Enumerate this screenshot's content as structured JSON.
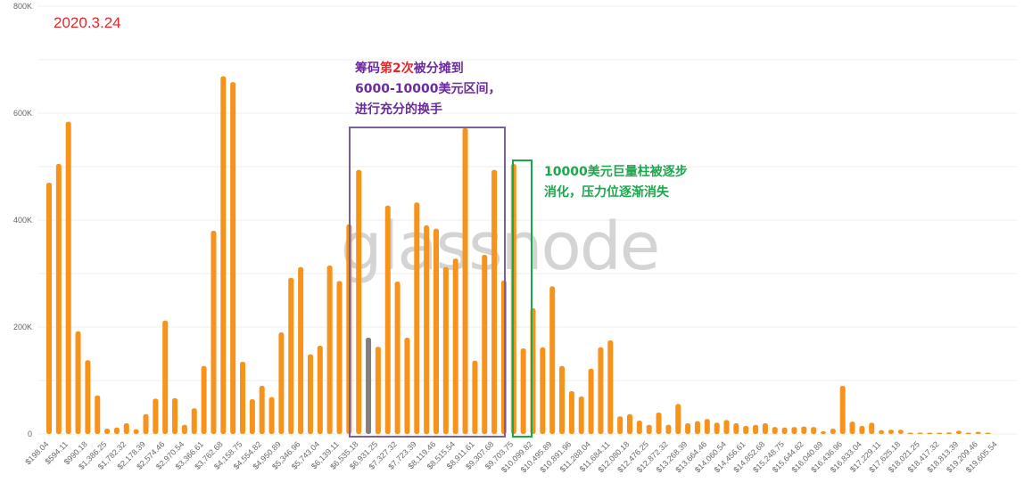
{
  "chart_data": {
    "type": "bar",
    "watermark": "glassnode",
    "y_tick_labels": [
      "0",
      "200K",
      "400K",
      "600K",
      "800K"
    ],
    "ylim": [
      0,
      800000
    ],
    "grid": true,
    "x_tick_labels": [
      "$198.04",
      "$594.11",
      "$990.18",
      "$1,386.25",
      "$1,782.32",
      "$2,178.39",
      "$2,574.46",
      "$2,970.54",
      "$3,366.61",
      "$3,762.68",
      "$4,158.75",
      "$4,554.82",
      "$4,950.89",
      "$5,346.96",
      "$5,743.04",
      "$6,139.11",
      "$6,535.18",
      "$6,931.25",
      "$7,327.32",
      "$7,723.39",
      "$8,119.46",
      "$8,515.54",
      "$8,911.61",
      "$9,307.68",
      "$9,703.75",
      "$10,099.82",
      "$10,495.89",
      "$10,891.96",
      "$11,288.04",
      "$11,684.11",
      "$12,080.18",
      "$12,476.25",
      "$12,872.32",
      "$13,268.39",
      "$13,664.46",
      "$14,060.54",
      "$14,456.61",
      "$14,852.68",
      "$15,248.75",
      "$15,644.82",
      "$16,040.89",
      "$16,436.96",
      "$16,833.04",
      "$17,229.11",
      "$17,625.18",
      "$18,021.25",
      "$18,417.32",
      "$18,813.39",
      "$19,209.46",
      "$19,605.54"
    ],
    "values": [
      470000,
      505000,
      584000,
      192000,
      138000,
      72000,
      10000,
      12000,
      20000,
      9000,
      37000,
      66000,
      212000,
      67000,
      17000,
      48000,
      127000,
      380000,
      669000,
      658000,
      135000,
      65000,
      90000,
      69000,
      190000,
      292000,
      312000,
      149000,
      165000,
      315000,
      286000,
      392000,
      494000,
      180000,
      163000,
      427000,
      285000,
      180000,
      433000,
      390000,
      384000,
      312000,
      328000,
      572000,
      137000,
      335000,
      494000,
      287000,
      505000,
      160000,
      235000,
      162000,
      276000,
      127000,
      80000,
      70000,
      122000,
      162000,
      175000,
      33000,
      37000,
      25000,
      17000,
      40000,
      17000,
      56000,
      20000,
      24000,
      28000,
      21000,
      26000,
      20000,
      15000,
      17000,
      20000,
      13000,
      12000,
      13000,
      14000,
      13000,
      5000,
      10000,
      90000,
      23000,
      15000,
      21000,
      7000,
      8000,
      8000,
      1000,
      2000,
      1000,
      1000,
      3000,
      6000,
      1000,
      4000,
      1000
    ],
    "highlight_index": 33,
    "colors": {
      "bar": "#f7931a",
      "highlight": "#808080",
      "grid": "#eeeeee",
      "axis_text": "#666666"
    }
  },
  "annotations": {
    "date": "2020.3.24",
    "purple_line1_a": "筹码",
    "purple_line1_b": "第2次",
    "purple_line1_c": "被分摊到",
    "purple_line2": "6000-10000美元区间，",
    "purple_line3": "进行充分的换手",
    "green_line1": "10000美元巨量柱被逐步",
    "green_line2": "消化，压力位逐渐消失",
    "colors": {
      "red": "#e8262a",
      "purple": "#6a2c9a",
      "green": "#1aa84a"
    }
  }
}
